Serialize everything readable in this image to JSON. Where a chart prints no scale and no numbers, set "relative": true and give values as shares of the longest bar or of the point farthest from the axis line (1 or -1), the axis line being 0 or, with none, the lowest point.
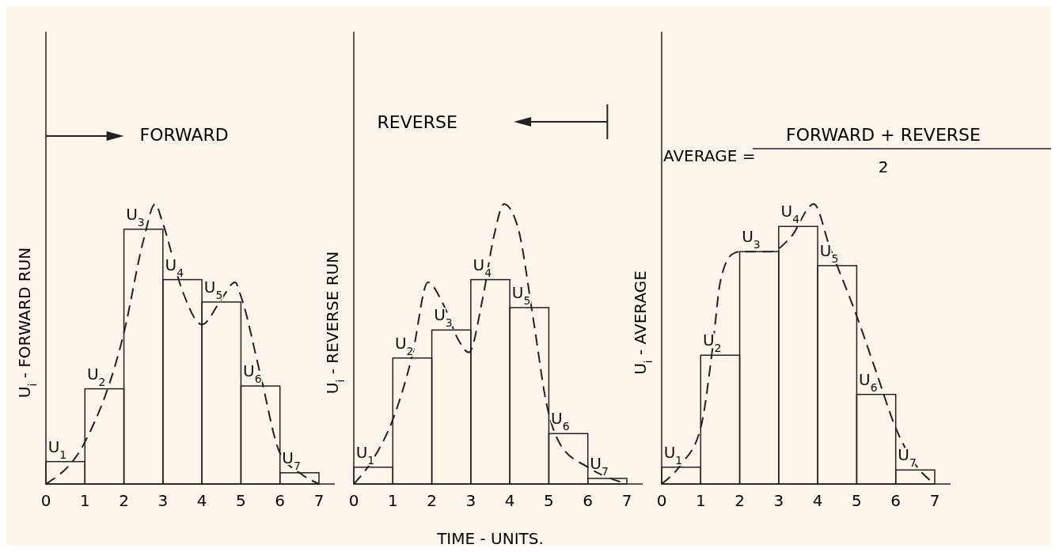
{
  "chart_data": [
    {
      "type": "bar",
      "ylabel": "U$_{i}$ - FORWARD RUN",
      "relative": true,
      "xlim": [
        0,
        7
      ],
      "xticks": [
        0,
        1,
        2,
        3,
        4,
        5,
        6,
        7
      ],
      "annotations": [
        "FORWARD",
        {
          "text": "U$_{1}$",
          "x": 0.5,
          "y": 0.08
        },
        {
          "text": "U$_{2}$",
          "x": 1.5,
          "y": 0.34
        },
        {
          "text": "U$_{3}$",
          "x": 2.5,
          "y": 0.91
        },
        {
          "text": "U$_{4}$",
          "x": 3.5,
          "y": 0.73
        },
        {
          "text": "U$_{5}$",
          "x": 4.5,
          "y": 0.65
        },
        {
          "text": "U$_{6}$",
          "x": 5.5,
          "y": 0.35
        },
        {
          "text": "U$_{7}$",
          "x": 6.5,
          "y": 0.04
        }
      ],
      "series": [
        {
          "color": "#222222",
          "x": [
            0.5,
            1.5,
            2.5,
            3.5,
            4.5,
            5.5,
            6.5
          ],
          "values": [
            0.08,
            0.34,
            0.91,
            0.73,
            0.65,
            0.35,
            0.04
          ]
        },
        {
          "type": "line",
          "color": "#222222",
          "line_style": "dashed",
          "x": [
            0,
            1,
            2,
            2.5,
            2.8,
            3,
            3.5,
            4,
            4.5,
            4.85,
            5,
            5.5,
            6,
            6.5,
            7
          ],
          "values": [
            0,
            0.15,
            0.54,
            0.87,
            1,
            0.93,
            0.69,
            0.57,
            0.66,
            0.72,
            0.67,
            0.39,
            0.11,
            0.04,
            0
          ]
        }
      ]
    },
    {
      "type": "bar",
      "ylabel": "U$_{i}$ - REVERSE RUN",
      "xlabel": "TIME - UNITS.",
      "relative": true,
      "xlim": [
        0,
        7
      ],
      "xticks": [
        0,
        1,
        2,
        3,
        4,
        5,
        6,
        7
      ],
      "annotations": [
        "REVERSE",
        {
          "text": "U$_{1}$",
          "x": 0.5,
          "y": 0.06
        },
        {
          "text": "U$_{2}$",
          "x": 1.5,
          "y": 0.45
        },
        {
          "text": "U$_{3}$",
          "x": 2.5,
          "y": 0.55
        },
        {
          "text": "U$_{4}$",
          "x": 3.5,
          "y": 0.73
        },
        {
          "text": "U$_{5}$",
          "x": 4.5,
          "y": 0.63
        },
        {
          "text": "U$_{6}$",
          "x": 5.5,
          "y": 0.18
        },
        {
          "text": "U$_{7}$",
          "x": 6.5,
          "y": 0.02
        }
      ],
      "series": [
        {
          "color": "#222222",
          "x": [
            0.5,
            1.5,
            2.5,
            3.5,
            4.5,
            5.5,
            6.5
          ],
          "values": [
            0.06,
            0.45,
            0.55,
            0.73,
            0.63,
            0.18,
            0.02
          ]
        },
        {
          "type": "line",
          "color": "#222222",
          "line_style": "dashed",
          "x": [
            0,
            0.5,
            1,
            1.5,
            1.9,
            2.3,
            2.7,
            2.95,
            3.3,
            3.6,
            3.85,
            4.2,
            4.6,
            4.95,
            5.3,
            6,
            7
          ],
          "values": [
            0,
            0.09,
            0.23,
            0.46,
            0.72,
            0.64,
            0.51,
            0.47,
            0.66,
            0.89,
            1,
            0.92,
            0.59,
            0.28,
            0.14,
            0.06,
            0
          ]
        }
      ]
    },
    {
      "type": "bar",
      "ylabel": "U$_{i}$ - AVERAGE",
      "relative": true,
      "xlim": [
        0,
        7
      ],
      "xticks": [
        0,
        1,
        2,
        3,
        4,
        5,
        6,
        7
      ],
      "annotations": [
        "AVERAGE =",
        "FORWARD + REVERSE",
        "2",
        {
          "text": "U$_{1}$",
          "x": 0.5,
          "y": 0.06
        },
        {
          "text": "U$_{2}$",
          "x": 1.5,
          "y": 0.46
        },
        {
          "text": "U$_{3}$",
          "x": 2.5,
          "y": 0.83
        },
        {
          "text": "U$_{4}$",
          "x": 3.5,
          "y": 0.92
        },
        {
          "text": "U$_{5}$",
          "x": 4.5,
          "y": 0.78
        },
        {
          "text": "U$_{6}$",
          "x": 5.5,
          "y": 0.32
        },
        {
          "text": "U$_{7}$",
          "x": 6.5,
          "y": 0.05
        }
      ],
      "series": [
        {
          "color": "#222222",
          "x": [
            0.5,
            1.5,
            2.5,
            3.5,
            4.5,
            5.5,
            6.5
          ],
          "values": [
            0.06,
            0.46,
            0.83,
            0.92,
            0.78,
            0.32,
            0.05
          ]
        },
        {
          "type": "line",
          "color": "#222222",
          "line_style": "dashed",
          "x": [
            0,
            0.5,
            1,
            1.3,
            1.5,
            1.8,
            2,
            2.8,
            3.3,
            3.9,
            4.3,
            5,
            5.5,
            6,
            6.5,
            7
          ],
          "values": [
            0,
            0.07,
            0.2,
            0.48,
            0.72,
            0.82,
            0.83,
            0.83,
            0.88,
            1,
            0.85,
            0.6,
            0.4,
            0.2,
            0.07,
            0
          ]
        }
      ]
    }
  ]
}
